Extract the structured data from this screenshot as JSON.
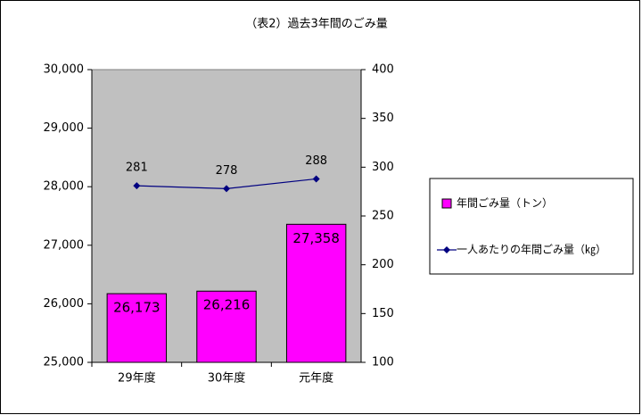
{
  "chart_data": {
    "type": "bar",
    "title": "（表2）過去3年間のごみ量",
    "categories": [
      "29年度",
      "30年度",
      "元年度"
    ],
    "series": [
      {
        "name": "年間ごみ量（トン）",
        "type": "bar",
        "color": "#ff00ff",
        "values": [
          26173,
          26216,
          27358
        ],
        "value_labels": [
          "26,173",
          "26,216",
          "27,358"
        ]
      },
      {
        "name": "一人あたりの年間ごみ量（㎏）",
        "type": "line",
        "axis": "y2",
        "color": "#000080",
        "values": [
          281,
          278,
          288
        ]
      }
    ],
    "ylim": [
      25000,
      30000
    ],
    "yticks": [
      {
        "value": 25000,
        "label": "25,000"
      },
      {
        "value": 26000,
        "label": "26,000"
      },
      {
        "value": 27000,
        "label": "27,000"
      },
      {
        "value": 28000,
        "label": "28,000"
      },
      {
        "value": 29000,
        "label": "29,000"
      },
      {
        "value": 30000,
        "label": "30,000"
      }
    ],
    "y2lim": [
      100,
      400
    ],
    "y2ticks": [
      100,
      150,
      200,
      250,
      300,
      350,
      400
    ],
    "plot_color": "#c0c0c0",
    "legend": "right"
  }
}
